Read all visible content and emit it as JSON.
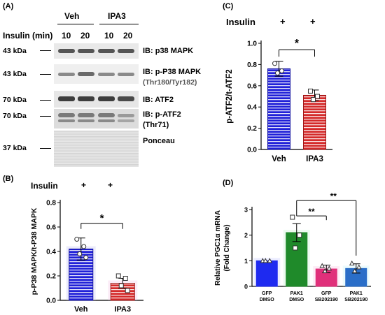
{
  "panel_a": {
    "letter": "(A)",
    "group_labels": [
      "Veh",
      "IPA3"
    ],
    "insulin_label": "Insulin (min)",
    "time_labels": [
      "10",
      "20",
      "10",
      "20"
    ],
    "blots": [
      {
        "kda": "43 kDa",
        "ib": "IB: p38 MAPK",
        "sub": ""
      },
      {
        "kda": "43 kDa",
        "ib": "IB: p-P38 MAPK",
        "sub": "(Thr180/Tyr182)"
      },
      {
        "kda": "70 kDa",
        "ib": "IB: ATF2",
        "sub": ""
      },
      {
        "kda": "70 kDa",
        "ib": "IB: p-ATF2",
        "sub": "(Thr71)"
      },
      {
        "kda": "37 kDa",
        "ib": "Ponceau",
        "sub": ""
      }
    ]
  },
  "panel_b": {
    "letter": "(B)",
    "insulin_label": "Insulin",
    "plus": "+",
    "star": "*",
    "colors": {
      "veh": "#2020d8",
      "ipa3": "#d42a2a"
    }
  },
  "panel_c": {
    "letter": "(C)",
    "insulin_label": "Insulin",
    "plus": "+",
    "star": "*",
    "colors": {
      "veh": "#2020d8",
      "ipa3": "#d42a2a"
    }
  },
  "panel_d": {
    "letter": "(D)",
    "stars": "**"
  },
  "chart_data": [
    {
      "id": "B",
      "type": "bar",
      "categories": [
        "Veh",
        "IPA3"
      ],
      "values": [
        0.42,
        0.14
      ],
      "errors": [
        0.09,
        0.04
      ],
      "points": [
        [
          0.5,
          0.44,
          0.38,
          0.35
        ],
        [
          0.2,
          0.18,
          0.12,
          0.08
        ]
      ],
      "ylabel": "p-P38 MAPK/t-P38 MAPK",
      "ylim": [
        0.0,
        0.8
      ],
      "yticks": [
        "0.0",
        "0.2",
        "0.4",
        "0.6",
        "0.8"
      ]
    },
    {
      "id": "C",
      "type": "bar",
      "categories": [
        "Veh",
        "IPA3"
      ],
      "values": [
        0.76,
        0.51
      ],
      "errors": [
        0.07,
        0.05
      ],
      "points": [
        [
          0.81,
          0.74,
          0.72
        ],
        [
          0.55,
          0.5,
          0.47
        ]
      ],
      "ylabel": "p-ATF2/t-ATF2",
      "ylim": [
        0.0,
        1.0
      ],
      "yticks": [
        "0.0",
        "0.2",
        "0.4",
        "0.6",
        "0.8",
        "1.0"
      ]
    },
    {
      "id": "D",
      "type": "bar",
      "categories": [
        [
          "GFP",
          "DMSO"
        ],
        [
          "PAK1",
          "DMSO"
        ],
        [
          "GFP",
          "SB202190"
        ],
        [
          "PAK1",
          "SB202190"
        ]
      ],
      "values": [
        1.0,
        2.1,
        0.68,
        0.7
      ],
      "errors": [
        0.0,
        0.35,
        0.15,
        0.18
      ],
      "points": [
        [
          1.0,
          1.0,
          1.0
        ],
        [
          2.7,
          2.0,
          1.5
        ],
        [
          0.8,
          0.7,
          0.6
        ],
        [
          0.9,
          0.75,
          0.6
        ]
      ],
      "ylabel_lines": [
        "Relative PGC1α mRNA",
        "(Fold Change)"
      ],
      "ylim": [
        0,
        3
      ],
      "yticks": [
        "0",
        "1",
        "2",
        "3"
      ]
    }
  ]
}
